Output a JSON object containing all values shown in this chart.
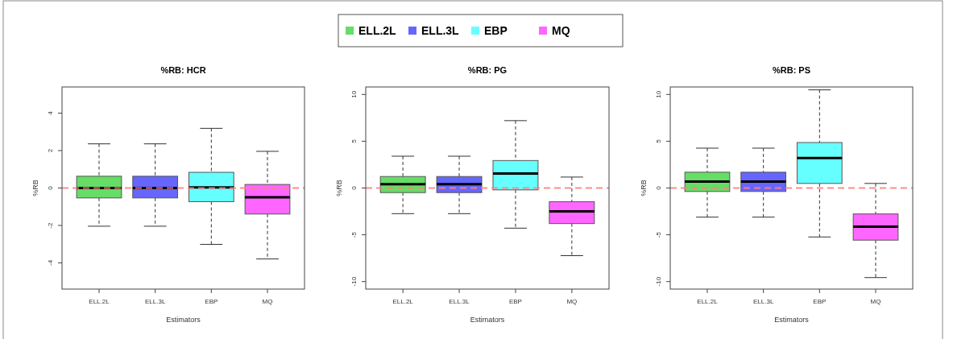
{
  "chart_data": [
    {
      "type": "box",
      "title": "%RB: HCR",
      "xlabel": "Estimators",
      "ylabel": "%RB",
      "categories": [
        "ELL.2L",
        "ELL.3L",
        "EBP",
        "MQ"
      ],
      "legend": "top",
      "series": [
        {
          "name": "ELL.2L",
          "color": "#66dd66",
          "boxes": [
            {
              "low": -2.04,
              "q1": -0.53,
              "median": 0.0,
              "q3": 0.63,
              "high": 2.36
            },
            null,
            null,
            null
          ]
        },
        {
          "name": "ELL.3L",
          "color": "#6666ff",
          "boxes": [
            null,
            {
              "low": -2.04,
              "q1": -0.53,
              "median": 0.0,
              "q3": 0.63,
              "high": 2.36
            },
            null,
            null
          ]
        },
        {
          "name": "EBP",
          "color": "#66ffff",
          "boxes": [
            null,
            null,
            {
              "low": -3.01,
              "q1": -0.73,
              "median": 0.03,
              "q3": 0.84,
              "high": 3.19
            },
            null
          ]
        },
        {
          "name": "MQ",
          "color": "#ff66ff",
          "boxes": [
            null,
            null,
            null,
            {
              "low": -3.79,
              "q1": -1.39,
              "median": -0.5,
              "q3": 0.19,
              "high": 1.96
            }
          ]
        }
      ],
      "ylim": [
        -5.4,
        5.4
      ],
      "yticks": [
        -4,
        -2,
        0,
        2,
        4
      ],
      "ref_lines": [
        {
          "axis": "y",
          "value": 0,
          "color": "#ff8080",
          "line_style": "dashed"
        }
      ]
    },
    {
      "type": "box",
      "title": "%RB: PG",
      "xlabel": "Estimators",
      "ylabel": "%RB",
      "categories": [
        "ELL.2L",
        "ELL.3L",
        "EBP",
        "MQ"
      ],
      "series": [
        {
          "color": "#66dd66",
          "boxes": [
            {
              "low": -2.74,
              "q1": -0.49,
              "median": 0.4,
              "q3": 1.23,
              "high": 3.4
            },
            null,
            null,
            null
          ]
        },
        {
          "color": "#6666ff",
          "boxes": [
            null,
            {
              "low": -2.74,
              "q1": -0.49,
              "median": 0.4,
              "q3": 1.23,
              "high": 3.4
            },
            null,
            null
          ]
        },
        {
          "color": "#66ffff",
          "boxes": [
            null,
            null,
            {
              "low": -4.29,
              "q1": -0.2,
              "median": 1.54,
              "q3": 2.94,
              "high": 7.2
            },
            null
          ]
        },
        {
          "color": "#ff66ff",
          "boxes": [
            null,
            null,
            null,
            {
              "low": -7.23,
              "q1": -3.8,
              "median": -2.49,
              "q3": -1.46,
              "high": 1.17
            }
          ]
        }
      ],
      "ylim": [
        -10.8,
        10.8
      ],
      "yticks": [
        -10,
        -5,
        0,
        5,
        10
      ],
      "ref_lines": [
        {
          "axis": "y",
          "value": 0,
          "color": "#ff8080",
          "line_style": "dashed"
        }
      ]
    },
    {
      "type": "box",
      "title": "%RB: PS",
      "xlabel": "Estimators",
      "ylabel": "%RB",
      "categories": [
        "ELL.2L",
        "ELL.3L",
        "EBP",
        "MQ"
      ],
      "series": [
        {
          "color": "#66dd66",
          "boxes": [
            {
              "low": -3.11,
              "q1": -0.37,
              "median": 0.69,
              "q3": 1.69,
              "high": 4.26
            },
            null,
            null,
            null
          ]
        },
        {
          "color": "#6666ff",
          "boxes": [
            null,
            {
              "low": -3.11,
              "q1": -0.37,
              "median": 0.69,
              "q3": 1.69,
              "high": 4.26
            },
            null,
            null
          ]
        },
        {
          "color": "#66ffff",
          "boxes": [
            null,
            null,
            {
              "low": -5.23,
              "q1": 0.49,
              "median": 3.2,
              "q3": 4.86,
              "high": 10.49
            },
            null
          ]
        },
        {
          "color": "#ff66ff",
          "boxes": [
            null,
            null,
            null,
            {
              "low": -9.57,
              "q1": -5.57,
              "median": -4.14,
              "q3": -2.77,
              "high": 0.49
            }
          ]
        }
      ],
      "ylim": [
        -10.8,
        10.8
      ],
      "yticks": [
        -10,
        -5,
        0,
        5,
        10
      ],
      "ref_lines": [
        {
          "axis": "y",
          "value": 0,
          "color": "#ff8080",
          "line_style": "dashed"
        }
      ]
    }
  ]
}
